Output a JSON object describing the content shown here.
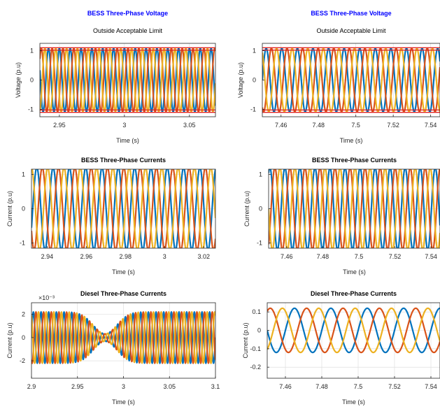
{
  "colors": {
    "phase_a": "#0072BD",
    "phase_b": "#D95319",
    "phase_c": "#EDB120",
    "limit": "#E02020",
    "title_blue": "#0000FF"
  },
  "chart_data": [
    {
      "id": "bess-voltage-1",
      "type": "line",
      "title": "BESS Three-Phase Voltage",
      "title_color": "blue",
      "subtitle": "Outside Acceptable Limit",
      "xlabel": "Time (s)",
      "ylabel": "Voltage (p.u)",
      "xlim": [
        2.935,
        3.07
      ],
      "ylim": [
        -1.25,
        1.25
      ],
      "xticks": [
        2.95,
        3,
        3.05
      ],
      "xtick_labels": [
        "2.95",
        "3",
        "3.05"
      ],
      "yticks": [
        -1,
        0,
        1
      ],
      "ytick_labels": [
        "-1",
        "0",
        "1"
      ],
      "grid": true,
      "series_model": {
        "kind": "three-phase-sine",
        "amplitude": 1.08,
        "frequency_hz": 120,
        "phase_deg": 90
      },
      "limit_lines": [
        -1.1,
        -1.02,
        1.02,
        1.1
      ]
    },
    {
      "id": "bess-voltage-2",
      "type": "line",
      "title": "BESS Three-Phase Voltage",
      "title_color": "blue",
      "subtitle": "Outside Acceptable Limit",
      "xlabel": "Time (s)",
      "ylabel": "Voltage (p.u)",
      "xlim": [
        7.45,
        7.545
      ],
      "ylim": [
        -1.25,
        1.25
      ],
      "xticks": [
        7.46,
        7.48,
        7.5,
        7.52,
        7.54
      ],
      "xtick_labels": [
        "7.46",
        "7.48",
        "7.5",
        "7.52",
        "7.54"
      ],
      "yticks": [
        -1,
        0,
        1
      ],
      "ytick_labels": [
        "-1",
        "0",
        "1"
      ],
      "grid": true,
      "series_model": {
        "kind": "three-phase-sine",
        "amplitude": 1.08,
        "frequency_hz": 120,
        "phase_deg": 0
      },
      "limit_lines": [
        -1.1,
        -1.02,
        1.02,
        1.1
      ]
    },
    {
      "id": "bess-current-1",
      "type": "line",
      "title": "BESS Three-Phase Currents",
      "xlabel": "Time (s)",
      "ylabel": "Current (p.u)",
      "xlim": [
        2.932,
        3.026
      ],
      "ylim": [
        -1.15,
        1.15
      ],
      "xticks": [
        2.94,
        2.96,
        2.98,
        3,
        3.02
      ],
      "xtick_labels": [
        "2.94",
        "2.96",
        "2.98",
        "3",
        "3.02"
      ],
      "yticks": [
        -1,
        0,
        1
      ],
      "ytick_labels": [
        "-1",
        "0",
        "1"
      ],
      "grid": true,
      "series_model": {
        "kind": "three-phase-sine",
        "amplitude": 1.2,
        "frequency_hz": 120,
        "phase_deg": 30
      }
    },
    {
      "id": "bess-current-2",
      "type": "line",
      "title": "BESS Three-Phase Currents",
      "xlabel": "Time (s)",
      "ylabel": "Current (p.u)",
      "xlim": [
        7.45,
        7.545
      ],
      "ylim": [
        -1.15,
        1.15
      ],
      "xticks": [
        7.46,
        7.48,
        7.5,
        7.52,
        7.54
      ],
      "xtick_labels": [
        "7.46",
        "7.48",
        "7.5",
        "7.52",
        "7.54"
      ],
      "yticks": [
        -1,
        0,
        1
      ],
      "ytick_labels": [
        "-1",
        "0",
        "1"
      ],
      "grid": true,
      "series_model": {
        "kind": "three-phase-sine",
        "amplitude": 1.2,
        "frequency_hz": 120,
        "phase_deg": 60
      }
    },
    {
      "id": "diesel-current-1",
      "type": "line",
      "title": "Diesel Three-Phase Currents",
      "xlabel": "Time (s)",
      "ylabel": "Current (p.u)",
      "exponent_label": "×10⁻³",
      "xlim": [
        2.9,
        3.1
      ],
      "ylim": [
        -3.5,
        3.0
      ],
      "xticks": [
        2.9,
        2.95,
        3,
        3.05,
        3.1
      ],
      "xtick_labels": [
        "2.9",
        "2.95",
        "3",
        "3.05",
        "3.1"
      ],
      "yticks": [
        -2,
        0,
        2
      ],
      "ytick_labels": [
        "-2",
        "0",
        "2"
      ],
      "grid": true,
      "series_model": {
        "kind": "three-phase-sine",
        "amplitude": 2.2,
        "frequency_hz": 120,
        "phase_deg": 0,
        "envelope": {
          "dip_center": 2.98,
          "dip_width": 0.018,
          "dip_floor": 0.15
        }
      }
    },
    {
      "id": "diesel-current-2",
      "type": "line",
      "title": "Diesel Three-Phase Currents",
      "xlabel": "Time (s)",
      "ylabel": "Current (p.u)",
      "xlim": [
        7.45,
        7.545
      ],
      "ylim": [
        -0.26,
        0.15
      ],
      "xticks": [
        7.46,
        7.48,
        7.5,
        7.52,
        7.54
      ],
      "xtick_labels": [
        "7.46",
        "7.48",
        "7.5",
        "7.52",
        "7.54"
      ],
      "yticks": [
        -0.2,
        -0.1,
        0,
        0.1
      ],
      "ytick_labels": [
        "-0.2",
        "-0.1",
        "0",
        "0.1"
      ],
      "grid": true,
      "series_model": {
        "kind": "three-phase-sine",
        "amplitude": 0.12,
        "frequency_hz": 50,
        "phase_deg": 0
      }
    }
  ]
}
